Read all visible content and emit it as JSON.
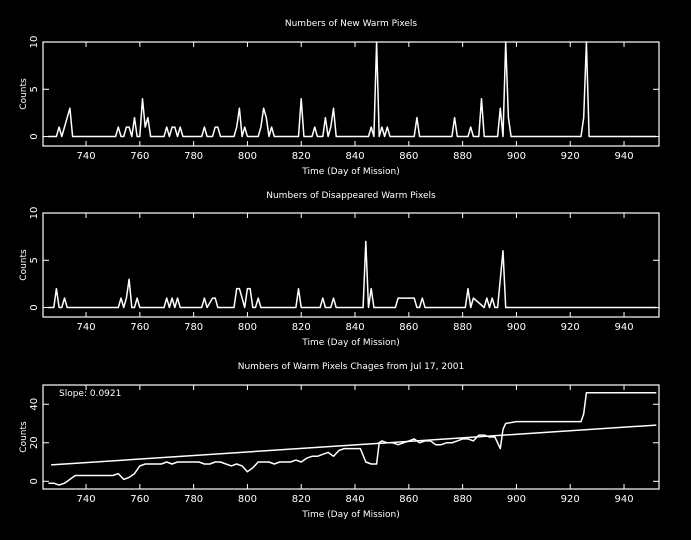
{
  "chart_data": [
    {
      "type": "line",
      "title": "Numbers of New Warm Pixels",
      "xlabel": "Time (Day of Mission)",
      "ylabel": "Counts",
      "xlim": [
        724,
        953
      ],
      "ylim": [
        -1,
        10
      ],
      "xticks": [
        740,
        760,
        780,
        800,
        820,
        840,
        860,
        880,
        900,
        920,
        940
      ],
      "yticks": [
        0,
        5,
        10
      ],
      "series": [
        {
          "x": [
            726,
            729,
            730,
            731,
            732,
            733,
            734,
            735,
            736,
            751,
            752,
            753,
            754,
            755,
            756,
            757,
            758,
            759,
            760,
            761,
            762,
            763,
            764,
            765,
            769,
            770,
            771,
            772,
            773,
            774,
            775,
            776,
            783,
            784,
            785,
            787,
            788,
            789,
            790,
            791,
            795,
            796,
            797,
            798,
            799,
            800,
            804,
            805,
            806,
            807,
            808,
            809,
            810,
            819,
            820,
            821,
            824,
            825,
            826,
            828,
            829,
            830,
            831,
            832,
            833,
            845,
            846,
            847,
            848,
            849,
            850,
            851,
            852,
            853,
            862,
            863,
            864,
            876,
            877,
            878,
            882,
            883,
            884,
            886,
            887,
            888,
            893,
            894,
            895,
            896,
            897,
            898,
            924,
            925,
            926,
            927,
            928,
            952
          ],
          "y": [
            0,
            0,
            1,
            0,
            1,
            2,
            3,
            0,
            0,
            0,
            1,
            0,
            0,
            1,
            1,
            0,
            2,
            0,
            0,
            4,
            1,
            2,
            0,
            0,
            0,
            1,
            0,
            1,
            1,
            0,
            1,
            0,
            0,
            1,
            0,
            0,
            1,
            1,
            0,
            0,
            0,
            1,
            3,
            0,
            1,
            0,
            0,
            1,
            3,
            2,
            0,
            1,
            0,
            0,
            4,
            0,
            0,
            1,
            0,
            0,
            2,
            0,
            1,
            3,
            0,
            0,
            1,
            0,
            10,
            0,
            1,
            0,
            1,
            0,
            0,
            2,
            0,
            0,
            2,
            0,
            0,
            1,
            0,
            0,
            4,
            0,
            0,
            3,
            0,
            10,
            2,
            0,
            0,
            2,
            10,
            0,
            0,
            0
          ]
        }
      ]
    },
    {
      "type": "line",
      "title": "Numbers of Disappeared Warm Pixels",
      "xlabel": "Time (Day of Mission)",
      "ylabel": "Counts",
      "xlim": [
        724,
        953
      ],
      "ylim": [
        -1,
        10
      ],
      "xticks": [
        740,
        760,
        780,
        800,
        820,
        840,
        860,
        880,
        900,
        920,
        940
      ],
      "yticks": [
        0,
        5,
        10
      ],
      "series": [
        {
          "x": [
            726,
            728,
            729,
            730,
            731,
            732,
            733,
            752,
            753,
            754,
            755,
            756,
            757,
            758,
            759,
            760,
            769,
            770,
            771,
            772,
            773,
            774,
            775,
            782,
            783,
            784,
            785,
            787,
            788,
            789,
            795,
            796,
            797,
            798,
            799,
            800,
            801,
            802,
            803,
            804,
            805,
            818,
            819,
            820,
            827,
            828,
            829,
            831,
            832,
            833,
            843,
            844,
            845,
            846,
            847,
            854,
            855,
            856,
            857,
            858,
            859,
            862,
            863,
            864,
            865,
            866,
            881,
            882,
            883,
            884,
            888,
            889,
            890,
            891,
            892,
            893,
            894,
            895,
            896,
            952
          ],
          "y": [
            0,
            0,
            2,
            0,
            0,
            1,
            0,
            0,
            1,
            0,
            1,
            3,
            0,
            0,
            1,
            0,
            0,
            1,
            0,
            1,
            0,
            1,
            0,
            0,
            0,
            1,
            0,
            1,
            1,
            0,
            0,
            2,
            2,
            1,
            0,
            2,
            2,
            0,
            0,
            1,
            0,
            0,
            2,
            0,
            0,
            1,
            0,
            0,
            1,
            0,
            0,
            7,
            0,
            2,
            0,
            0,
            0,
            1,
            1,
            1,
            1,
            1,
            0,
            0,
            1,
            0,
            0,
            2,
            0,
            1,
            0,
            1,
            0,
            1,
            0,
            0,
            3,
            6,
            0,
            0
          ]
        }
      ]
    },
    {
      "type": "line",
      "title": "Numbers of Warm Pixels Chages from Jul 17, 2001",
      "xlabel": "Time (Day of Mission)",
      "ylabel": "Counts",
      "annotation": "Slope: 0.0921",
      "xlim": [
        724,
        953
      ],
      "ylim": [
        -4,
        50
      ],
      "xticks": [
        740,
        760,
        780,
        800,
        820,
        840,
        860,
        880,
        900,
        920,
        940
      ],
      "yticks": [
        0,
        20,
        40
      ],
      "series": [
        {
          "x": [
            726,
            728,
            730,
            732,
            734,
            736,
            740,
            750,
            752,
            754,
            756,
            758,
            760,
            762,
            764,
            766,
            768,
            770,
            772,
            774,
            776,
            778,
            780,
            782,
            784,
            786,
            788,
            790,
            792,
            794,
            796,
            798,
            800,
            802,
            804,
            806,
            808,
            810,
            812,
            814,
            816,
            818,
            820,
            822,
            824,
            826,
            828,
            830,
            832,
            834,
            836,
            838,
            840,
            842,
            844,
            846,
            847,
            848,
            849,
            850,
            852,
            854,
            856,
            858,
            860,
            862,
            864,
            866,
            868,
            870,
            872,
            874,
            876,
            878,
            880,
            882,
            884,
            886,
            888,
            890,
            892,
            893,
            894,
            895,
            896,
            900,
            910,
            920,
            924,
            925,
            926,
            930,
            940,
            952
          ],
          "y": [
            -1,
            -1,
            -2,
            -1,
            1,
            3,
            3,
            3,
            4,
            1,
            2,
            4,
            8,
            9,
            9,
            9,
            9,
            10,
            9,
            10,
            10,
            10,
            10,
            10,
            9,
            9,
            10,
            10,
            9,
            8,
            9,
            8,
            5,
            7,
            10,
            10,
            10,
            9,
            10,
            10,
            10,
            11,
            10,
            12,
            13,
            13,
            14,
            15,
            13,
            16,
            17,
            17,
            17,
            17,
            10,
            9,
            9,
            9,
            20,
            21,
            20,
            20,
            19,
            20,
            21,
            22,
            20,
            21,
            21,
            19,
            19,
            20,
            20,
            21,
            22,
            22,
            21,
            24,
            24,
            23,
            23,
            20,
            17,
            27,
            30,
            31,
            31,
            31,
            31,
            35,
            46,
            46,
            46,
            46
          ]
        },
        {
          "name": "fit",
          "x": [
            727,
            952
          ],
          "y": [
            8.5,
            29.2
          ]
        }
      ]
    }
  ]
}
